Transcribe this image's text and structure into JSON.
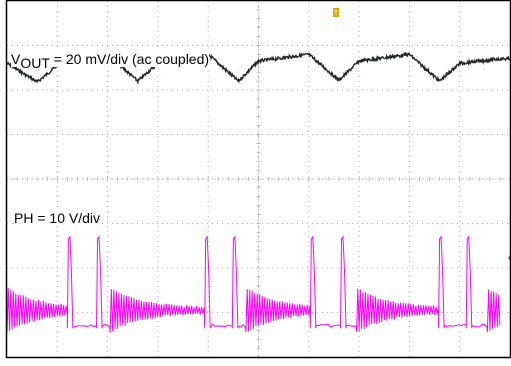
{
  "chart_data": {
    "type": "line",
    "title": "",
    "grid": true,
    "grid_divisions": {
      "horizontal": 10,
      "vertical": 8
    },
    "trigger_marker": "T",
    "channels": [
      {
        "name_prefix": "V",
        "name_subscript": "OUT",
        "scale_text": " = 20 mV/div (ac coupled)",
        "color": "#1f2a1f",
        "waveform": "sawtooth ripple",
        "x_div": [
          0.0,
          0.6,
          1.0,
          2.0,
          2.6,
          3.0,
          4.0,
          4.6,
          5.0,
          6.0,
          6.6,
          7.0,
          8.0,
          8.6,
          9.0,
          9.8,
          10.0
        ],
        "y_div_from_top": [
          1.4,
          1.82,
          1.45,
          1.2,
          1.8,
          1.4,
          1.2,
          1.8,
          1.35,
          1.2,
          1.78,
          1.35,
          1.2,
          1.8,
          1.4,
          1.3,
          1.3
        ]
      },
      {
        "name": "PH = 10 V/div",
        "color": "#ff00ff",
        "waveform": "switch node with ringing bursts",
        "pulse_x_div": [
          1.22,
          1.8,
          3.95,
          4.5,
          6.05,
          6.65,
          8.6,
          9.15
        ],
        "ringing_start_x_div": [
          0.0,
          2.05,
          4.75,
          6.95,
          9.55
        ],
        "ringing_end_x_div": [
          1.2,
          3.92,
          6.02,
          8.58,
          9.8
        ]
      }
    ]
  }
}
